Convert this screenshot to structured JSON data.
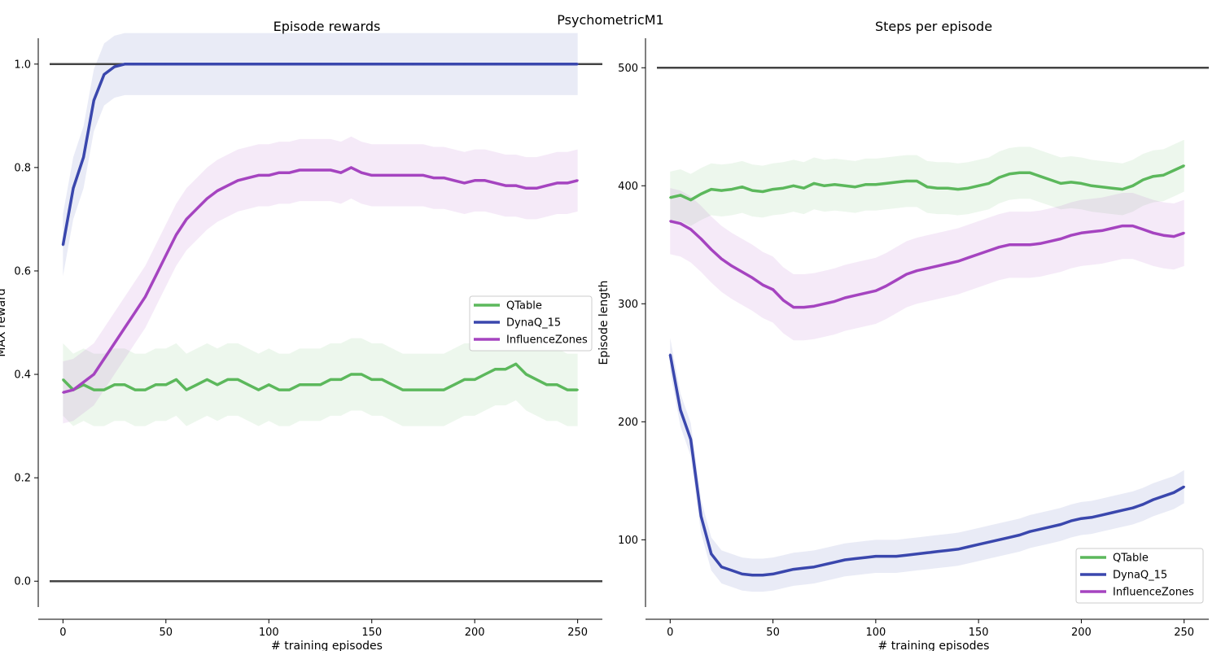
{
  "figure": {
    "suptitle": "PsychometricM1"
  },
  "colors": {
    "QTable": "#5cb85c",
    "DynaQ_15": "#3a47ad",
    "InfluenceZones": "#a544c0",
    "reference": "#444444"
  },
  "chart_data": [
    {
      "type": "line",
      "title": "Episode rewards",
      "xlabel": "# training episodes",
      "ylabel": "MAX reward",
      "xlim": [
        -12,
        262
      ],
      "ylim": [
        -0.05,
        1.05
      ],
      "xticks": [
        0,
        50,
        100,
        150,
        200,
        250
      ],
      "yticks": [
        0.0,
        0.2,
        0.4,
        0.6,
        0.8,
        1.0
      ],
      "ytick_format": "fixed1",
      "hlines": [
        0.0,
        1.0
      ],
      "grid": false,
      "legend_position": "center-right",
      "x": [
        0,
        5,
        10,
        15,
        20,
        25,
        30,
        35,
        40,
        45,
        50,
        55,
        60,
        65,
        70,
        75,
        80,
        85,
        90,
        95,
        100,
        105,
        110,
        115,
        120,
        125,
        130,
        135,
        140,
        145,
        150,
        155,
        160,
        165,
        170,
        175,
        180,
        185,
        190,
        195,
        200,
        205,
        210,
        215,
        220,
        225,
        230,
        235,
        240,
        245,
        250
      ],
      "series": [
        {
          "name": "QTable",
          "color_key": "QTable",
          "values": [
            0.39,
            0.37,
            0.38,
            0.37,
            0.37,
            0.38,
            0.38,
            0.37,
            0.37,
            0.38,
            0.38,
            0.39,
            0.37,
            0.38,
            0.39,
            0.38,
            0.39,
            0.39,
            0.38,
            0.37,
            0.38,
            0.37,
            0.37,
            0.38,
            0.38,
            0.38,
            0.39,
            0.39,
            0.4,
            0.4,
            0.39,
            0.39,
            0.38,
            0.37,
            0.37,
            0.37,
            0.37,
            0.37,
            0.38,
            0.39,
            0.39,
            0.4,
            0.41,
            0.41,
            0.42,
            0.4,
            0.39,
            0.38,
            0.38,
            0.37,
            0.37
          ],
          "band": 0.07
        },
        {
          "name": "DynaQ_15",
          "color_key": "DynaQ_15",
          "values": [
            0.65,
            0.76,
            0.82,
            0.93,
            0.98,
            0.995,
            1.0,
            1.0,
            1.0,
            1.0,
            1.0,
            1.0,
            1.0,
            1.0,
            1.0,
            1.0,
            1.0,
            1.0,
            1.0,
            1.0,
            1.0,
            1.0,
            1.0,
            1.0,
            1.0,
            1.0,
            1.0,
            1.0,
            1.0,
            1.0,
            1.0,
            1.0,
            1.0,
            1.0,
            1.0,
            1.0,
            1.0,
            1.0,
            1.0,
            1.0,
            1.0,
            1.0,
            1.0,
            1.0,
            1.0,
            1.0,
            1.0,
            1.0,
            1.0,
            1.0,
            1.0
          ],
          "band": 0.06
        },
        {
          "name": "InfluenceZones",
          "color_key": "InfluenceZones",
          "values": [
            0.365,
            0.37,
            0.385,
            0.4,
            0.43,
            0.46,
            0.49,
            0.52,
            0.55,
            0.59,
            0.63,
            0.67,
            0.7,
            0.72,
            0.74,
            0.755,
            0.765,
            0.775,
            0.78,
            0.785,
            0.785,
            0.79,
            0.79,
            0.795,
            0.795,
            0.795,
            0.795,
            0.79,
            0.8,
            0.79,
            0.785,
            0.785,
            0.785,
            0.785,
            0.785,
            0.785,
            0.78,
            0.78,
            0.775,
            0.77,
            0.775,
            0.775,
            0.77,
            0.765,
            0.765,
            0.76,
            0.76,
            0.765,
            0.77,
            0.77,
            0.775
          ],
          "band": 0.06
        }
      ]
    },
    {
      "type": "line",
      "title": "Steps per episode",
      "xlabel": "# training episodes",
      "ylabel": "Episode length",
      "xlim": [
        -12,
        262
      ],
      "ylim": [
        43,
        525
      ],
      "xticks": [
        0,
        50,
        100,
        150,
        200,
        250
      ],
      "yticks": [
        100,
        200,
        300,
        400,
        500
      ],
      "ytick_format": "int",
      "hlines": [
        500
      ],
      "grid": false,
      "legend_position": "bottom-right",
      "x": [
        0,
        5,
        10,
        15,
        20,
        25,
        30,
        35,
        40,
        45,
        50,
        55,
        60,
        65,
        70,
        75,
        80,
        85,
        90,
        95,
        100,
        105,
        110,
        115,
        120,
        125,
        130,
        135,
        140,
        145,
        150,
        155,
        160,
        165,
        170,
        175,
        180,
        185,
        190,
        195,
        200,
        205,
        210,
        215,
        220,
        225,
        230,
        235,
        240,
        245,
        250
      ],
      "series": [
        {
          "name": "QTable",
          "color_key": "QTable",
          "values": [
            390,
            392,
            388,
            393,
            397,
            396,
            397,
            399,
            396,
            395,
            397,
            398,
            400,
            398,
            402,
            400,
            401,
            400,
            399,
            401,
            401,
            402,
            403,
            404,
            404,
            399,
            398,
            398,
            397,
            398,
            400,
            402,
            407,
            410,
            411,
            411,
            408,
            405,
            402,
            403,
            402,
            400,
            399,
            398,
            397,
            400,
            405,
            408,
            409,
            413,
            417
          ],
          "band": 22
        },
        {
          "name": "DynaQ_15",
          "color_key": "DynaQ_15",
          "values": [
            257,
            210,
            185,
            120,
            88,
            77,
            74,
            71,
            70,
            70,
            71,
            73,
            75,
            76,
            77,
            79,
            81,
            83,
            84,
            85,
            86,
            86,
            86,
            87,
            88,
            89,
            90,
            91,
            92,
            94,
            96,
            98,
            100,
            102,
            104,
            107,
            109,
            111,
            113,
            116,
            118,
            119,
            121,
            123,
            125,
            127,
            130,
            134,
            137,
            140,
            145
          ],
          "band": 14
        },
        {
          "name": "InfluenceZones",
          "color_key": "InfluenceZones",
          "values": [
            370,
            368,
            363,
            355,
            346,
            338,
            332,
            327,
            322,
            316,
            312,
            303,
            297,
            297,
            298,
            300,
            302,
            305,
            307,
            309,
            311,
            315,
            320,
            325,
            328,
            330,
            332,
            334,
            336,
            339,
            342,
            345,
            348,
            350,
            350,
            350,
            351,
            353,
            355,
            358,
            360,
            361,
            362,
            364,
            366,
            366,
            363,
            360,
            358,
            357,
            360
          ],
          "band": 28
        }
      ]
    }
  ]
}
